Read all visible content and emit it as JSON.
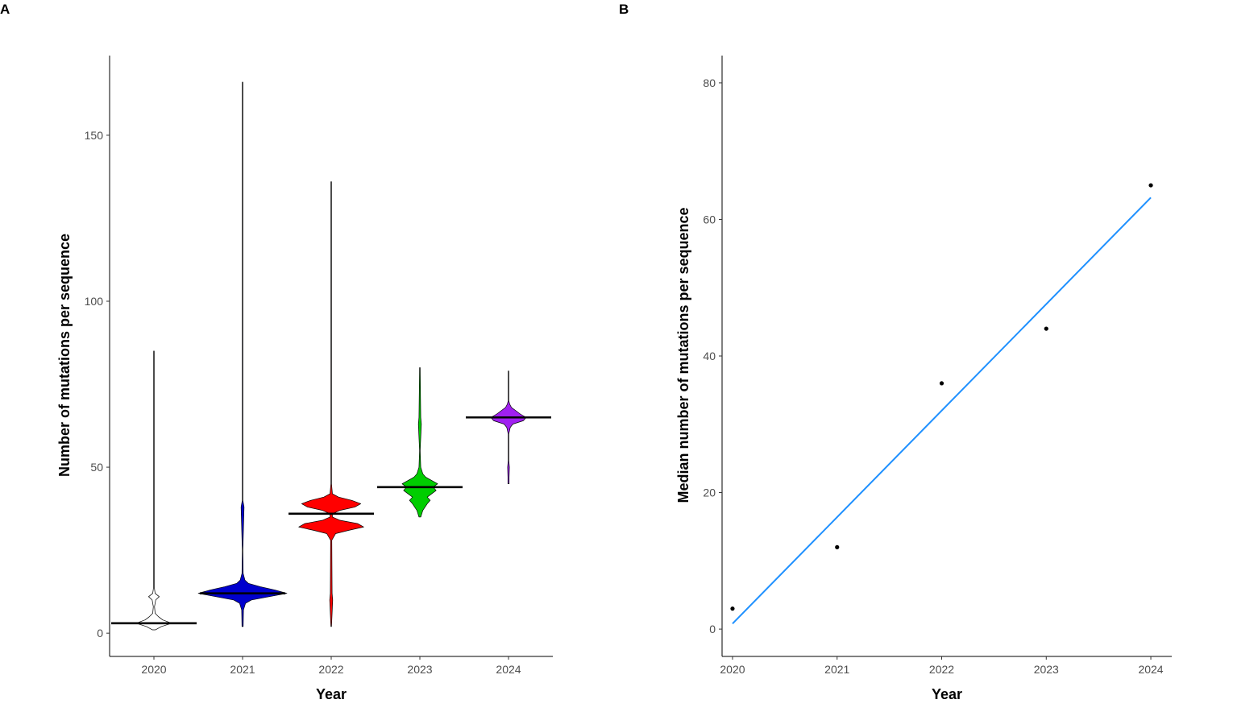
{
  "chart_data": [
    {
      "panel_label": "A",
      "type": "violin",
      "xlabel": "Year",
      "ylabel": "Number of mutations per sequence",
      "ylim": [
        -7,
        174
      ],
      "yticks": [
        0,
        50,
        100,
        150
      ],
      "categories": [
        "2020",
        "2021",
        "2022",
        "2023",
        "2024"
      ],
      "series": [
        {
          "category": "2020",
          "color": "#ffffff",
          "median": 3,
          "min": 1,
          "max": 85,
          "density": [
            [
              1,
              0.5
            ],
            [
              2,
              2.5
            ],
            [
              3,
              6
            ],
            [
              4,
              3
            ],
            [
              5,
              1.5
            ],
            [
              6,
              0.4
            ],
            [
              8,
              0.2
            ],
            [
              10,
              0.6
            ],
            [
              11,
              1.8
            ],
            [
              12,
              0.4
            ],
            [
              14,
              0.08
            ],
            [
              30,
              0.03
            ],
            [
              85,
              0.02
            ]
          ]
        },
        {
          "category": "2021",
          "color": "#0000cd",
          "median": 12,
          "min": 2,
          "max": 166,
          "density": [
            [
              2,
              0.2
            ],
            [
              7,
              0.3
            ],
            [
              9,
              1
            ],
            [
              10,
              3
            ],
            [
              11,
              9
            ],
            [
              12,
              15
            ],
            [
              13,
              11
            ],
            [
              14,
              6
            ],
            [
              15,
              2
            ],
            [
              16,
              0.8
            ],
            [
              18,
              0.2
            ],
            [
              25,
              0.05
            ],
            [
              38,
              0.5
            ],
            [
              40,
              0.1
            ],
            [
              166,
              0.02
            ]
          ]
        },
        {
          "category": "2022",
          "color": "#ff0000",
          "median": 36,
          "min": 2,
          "max": 136,
          "density": [
            [
              2,
              0.1
            ],
            [
              10,
              0.5
            ],
            [
              12,
              0.3
            ],
            [
              28,
              0.2
            ],
            [
              30,
              1.5
            ],
            [
              31,
              6
            ],
            [
              32,
              11
            ],
            [
              33,
              9
            ],
            [
              34,
              3
            ],
            [
              35,
              0.4
            ],
            [
              36,
              0.4
            ],
            [
              37,
              3
            ],
            [
              38,
              8
            ],
            [
              39,
              10
            ],
            [
              40,
              7
            ],
            [
              41,
              2.5
            ],
            [
              42,
              0.4
            ],
            [
              45,
              0.1
            ],
            [
              136,
              0.02
            ]
          ]
        },
        {
          "category": "2023",
          "color": "#00cd00",
          "median": 44,
          "min": 35,
          "max": 80,
          "density": [
            [
              35,
              0.3
            ],
            [
              37,
              1
            ],
            [
              39,
              2.5
            ],
            [
              40,
              3.5
            ],
            [
              41,
              2.5
            ],
            [
              42,
              4
            ],
            [
              43,
              5.5
            ],
            [
              44,
              4.5
            ],
            [
              45,
              6
            ],
            [
              46,
              4
            ],
            [
              47,
              2
            ],
            [
              48,
              1
            ],
            [
              50,
              0.3
            ],
            [
              55,
              0.1
            ],
            [
              63,
              0.5
            ],
            [
              65,
              0.3
            ],
            [
              80,
              0.02
            ]
          ]
        },
        {
          "category": "2024",
          "color": "#a020f0",
          "median": 65,
          "min": 45,
          "max": 79,
          "density": [
            [
              45,
              0.2
            ],
            [
              47,
              0.2
            ],
            [
              50,
              0.3
            ],
            [
              52,
              0.1
            ],
            [
              60,
              0.1
            ],
            [
              62,
              0.6
            ],
            [
              63,
              1.5
            ],
            [
              64,
              5
            ],
            [
              65,
              6
            ],
            [
              66,
              4
            ],
            [
              67,
              2.5
            ],
            [
              68,
              1
            ],
            [
              69,
              0.4
            ],
            [
              70,
              0.1
            ],
            [
              79,
              0.02
            ]
          ]
        }
      ]
    },
    {
      "panel_label": "B",
      "type": "scatter",
      "xlabel": "Year",
      "ylabel": "Median number of mutations per sequence",
      "xlim": [
        2019.9,
        2024.2
      ],
      "ylim": [
        -4,
        84
      ],
      "xticks": [
        2020,
        2021,
        2022,
        2023,
        2024
      ],
      "yticks": [
        0,
        20,
        40,
        60,
        80
      ],
      "points": [
        {
          "x": 2020,
          "y": 3
        },
        {
          "x": 2021,
          "y": 12
        },
        {
          "x": 2022,
          "y": 36
        },
        {
          "x": 2023,
          "y": 44
        },
        {
          "x": 2024,
          "y": 65
        }
      ],
      "fit_line": {
        "color": "#1e90ff",
        "start": [
          2020,
          0.8
        ],
        "end": [
          2024,
          63.2
        ]
      }
    }
  ]
}
